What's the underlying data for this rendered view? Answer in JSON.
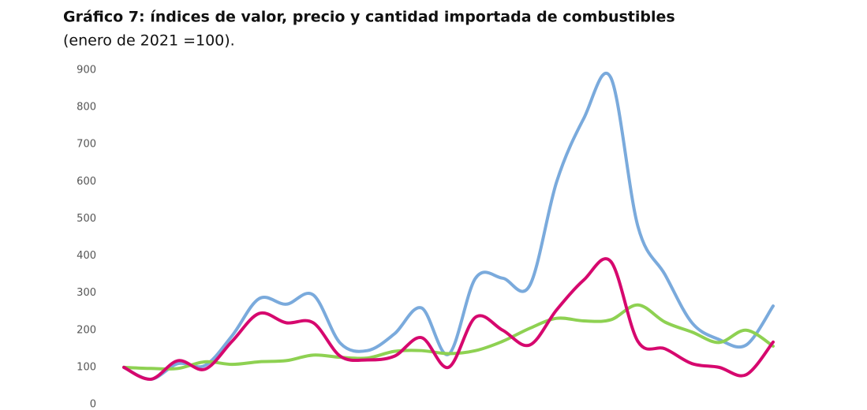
{
  "chart_data": {
    "type": "line",
    "title": "Gráfico 7: índices de valor, precio y cantidad importada de combustibles",
    "subtitle": "(enero de 2021 =100).",
    "categories": [
      null,
      null,
      null,
      null,
      null,
      null,
      null,
      null,
      null,
      null,
      null,
      null,
      null,
      null,
      null,
      null,
      null,
      null,
      null,
      null,
      null,
      null,
      null,
      null,
      null
    ],
    "series": [
      {
        "color": "#7aaadc",
        "values": [
          100,
          68,
          110,
          105,
          185,
          285,
          270,
          295,
          165,
          145,
          190,
          260,
          135,
          340,
          340,
          320,
          600,
          770,
          880,
          480,
          350,
          220,
          175,
          160,
          265
        ]
      },
      {
        "color": "#8ed152",
        "values": [
          100,
          97,
          97,
          115,
          108,
          115,
          118,
          133,
          127,
          125,
          143,
          145,
          137,
          145,
          170,
          205,
          232,
          225,
          228,
          268,
          222,
          195,
          167,
          200,
          157
        ]
      },
      {
        "color": "#d6086e",
        "values": [
          100,
          68,
          118,
          95,
          170,
          245,
          220,
          220,
          130,
          120,
          130,
          180,
          100,
          235,
          200,
          160,
          255,
          335,
          385,
          170,
          150,
          110,
          100,
          80,
          168
        ]
      }
    ],
    "ylim": [
      0,
      900
    ],
    "yticks": [
      0,
      100,
      200,
      300,
      400,
      500,
      600,
      700,
      800,
      900
    ],
    "grid": false
  }
}
